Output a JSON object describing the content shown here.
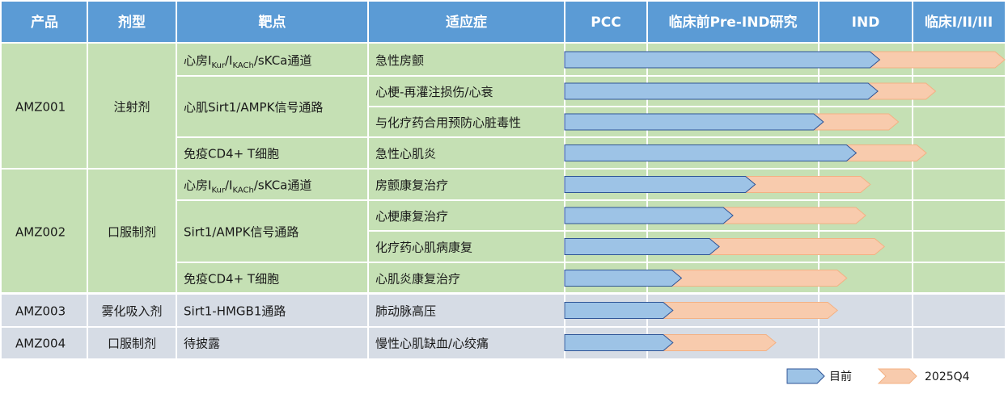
{
  "headers": [
    "产品",
    "剂型",
    "靶点",
    "适应症",
    "PCC",
    "临床前Pre-IND研究",
    "IND",
    "临床I/II/III"
  ],
  "products": [
    {
      "name": "AMZ001",
      "form": "注射剂",
      "group": "green"
    },
    {
      "name": "AMZ002",
      "form": "口服制剂",
      "group": "green"
    },
    {
      "name": "AMZ003",
      "form": "雾化吸入剂",
      "group": "gray"
    },
    {
      "name": "AMZ004",
      "form": "口服制剂",
      "group": "gray"
    }
  ],
  "targets": [
    {
      "parts": [
        {
          "t": "心房I"
        },
        {
          "t": "Kur",
          "sub": true
        },
        {
          "t": "/I"
        },
        {
          "t": "KACh",
          "sub": true
        },
        {
          "t": "/sKCa通道"
        }
      ]
    },
    {
      "parts": [
        {
          "t": "心肌Sirt1/AMPK信号通路"
        }
      ]
    },
    {
      "parts": [
        {
          "t": "免疫CD4+ T细胞"
        }
      ]
    },
    {
      "parts": [
        {
          "t": "心房I"
        },
        {
          "t": "Kur",
          "sub": true
        },
        {
          "t": "/I"
        },
        {
          "t": "KACh",
          "sub": true
        },
        {
          "t": "/sKCa通道"
        }
      ]
    },
    {
      "parts": [
        {
          "t": "Sirt1/AMPK信号通路"
        }
      ]
    },
    {
      "parts": [
        {
          "t": "免疫CD4+ T细胞"
        }
      ]
    },
    {
      "parts": [
        {
          "t": "Sirt1-HMGB1通路"
        }
      ]
    },
    {
      "parts": [
        {
          "t": "待披露"
        }
      ]
    }
  ],
  "chart_data": {
    "type": "bar",
    "stages": [
      "PCC",
      "临床前Pre-IND研究",
      "IND",
      "临床I/II/III"
    ],
    "series": [
      {
        "name": "目前",
        "color": "#9dc3e6"
      },
      {
        "name": "2025Q4",
        "color": "#f8cbad"
      }
    ],
    "rows": [
      {
        "indication": "急性房颤",
        "current": 2.65,
        "target": 4.0
      },
      {
        "indication": "心梗-再灌注损伤/心衰",
        "current": 2.63,
        "target": 3.25
      },
      {
        "indication": "与化疗药合用预防心脏毒性",
        "current": 2.05,
        "target": 2.85
      },
      {
        "indication": "急性心肌炎",
        "current": 2.4,
        "target": 3.15
      },
      {
        "indication": "房颤康复治疗",
        "current": 1.63,
        "target": 2.55
      },
      {
        "indication": "心梗康复治疗",
        "current": 1.5,
        "target": 2.5
      },
      {
        "indication": "化疗药心肌病康复",
        "current": 1.42,
        "target": 2.7
      },
      {
        "indication": "心肌炎康复治疗",
        "current": 1.2,
        "target": 2.3
      },
      {
        "indication": "肺动脉高压",
        "current": 1.15,
        "target": 2.2
      },
      {
        "indication": "慢性心肌缺血/心绞痛",
        "current": 1.15,
        "target": 1.75
      }
    ]
  }
}
